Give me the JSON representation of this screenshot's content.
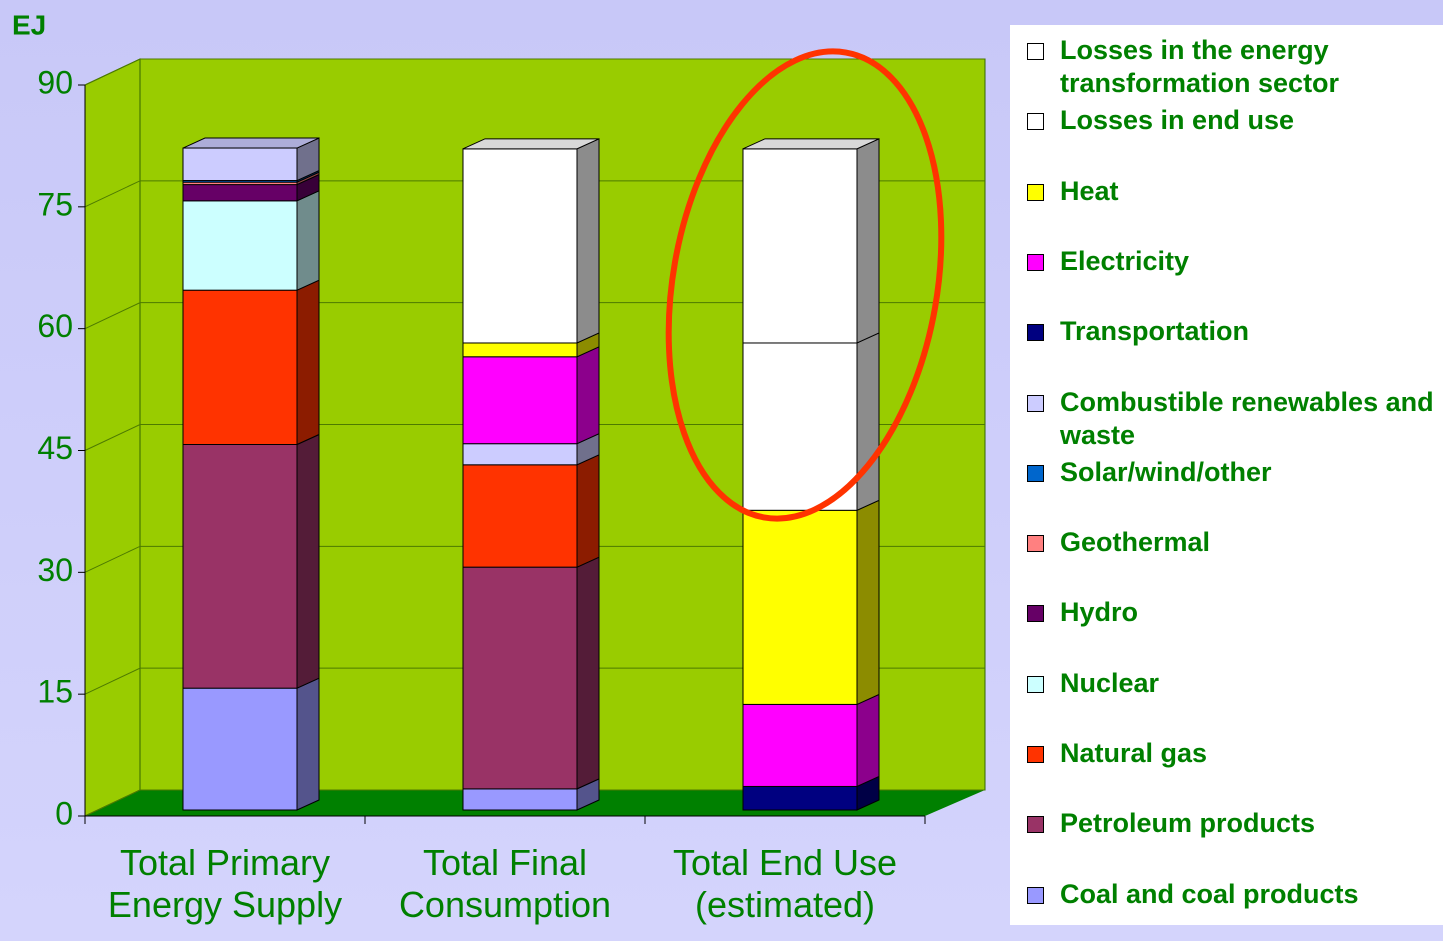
{
  "chart_data": {
    "type": "bar",
    "stacked": true,
    "y_label": "EJ",
    "categories": [
      "Total Primary Energy Supply",
      "Total Final Consumption",
      "Total End Use (estimated)"
    ],
    "series": [
      {
        "name": "Losses in the energy transformation sector",
        "color": "#ffffff",
        "values": [
          null,
          23.9,
          23.9
        ]
      },
      {
        "name": "Losses in end use",
        "color": "#ffffff",
        "values": [
          null,
          null,
          20.6
        ]
      },
      {
        "name": "Heat",
        "color": "#ffff00",
        "values": [
          null,
          1.7,
          23.9
        ]
      },
      {
        "name": "Electricity",
        "color": "#ff00ff",
        "values": [
          null,
          10.7,
          10.1
        ]
      },
      {
        "name": "Transportation",
        "color": "#000080",
        "values": [
          null,
          null,
          2.9
        ]
      },
      {
        "name": "Combustible renewables and waste",
        "color": "#ccccff",
        "values": [
          4,
          2.6,
          null
        ]
      },
      {
        "name": "Solar/wind/other",
        "color": "#0066cc",
        "values": [
          0.2,
          null,
          null
        ]
      },
      {
        "name": "Geothermal",
        "color": "#ff8080",
        "values": [
          0.3,
          null,
          null
        ]
      },
      {
        "name": "Hydro",
        "color": "#660066",
        "values": [
          2,
          null,
          null
        ]
      },
      {
        "name": "Nuclear",
        "color": "#ccffff",
        "values": [
          11,
          null,
          null
        ]
      },
      {
        "name": "Natural gas",
        "color": "#ff3300",
        "values": [
          19,
          12.6,
          null
        ]
      },
      {
        "name": "Petroleum products",
        "color": "#993366",
        "values": [
          30,
          27.3,
          null
        ]
      },
      {
        "name": "Coal and coal products",
        "color": "#9999ff",
        "values": [
          15,
          2.6,
          null
        ]
      }
    ],
    "ylim": [
      0,
      90
    ],
    "yticks": [
      0,
      15,
      30,
      45,
      60,
      75,
      90
    ],
    "grid": true
  }
}
